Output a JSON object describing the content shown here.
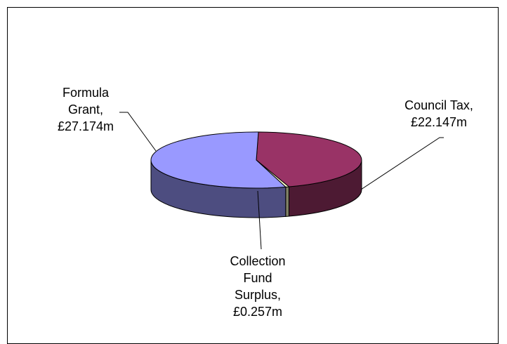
{
  "chart_data": {
    "type": "pie",
    "style": "3d",
    "title": "",
    "legend": "none",
    "units": "£m",
    "slices": [
      {
        "label_lines": [
          "Council Tax,",
          "£22.147m"
        ],
        "category": "Council Tax",
        "value": 22.147,
        "top_color": "#993366",
        "side_color": "#4d1a33"
      },
      {
        "label_lines": [
          "Collection",
          "Fund",
          "Surplus,",
          "£0.257m"
        ],
        "category": "Collection Fund Surplus",
        "value": 0.257,
        "top_color": "#ffffcc",
        "side_color": "#808066"
      },
      {
        "label_lines": [
          "Formula",
          "Grant,",
          "£27.174m"
        ],
        "category": "Formula Grant",
        "value": 27.174,
        "top_color": "#9999ff",
        "side_color": "#4d4d80"
      }
    ]
  }
}
